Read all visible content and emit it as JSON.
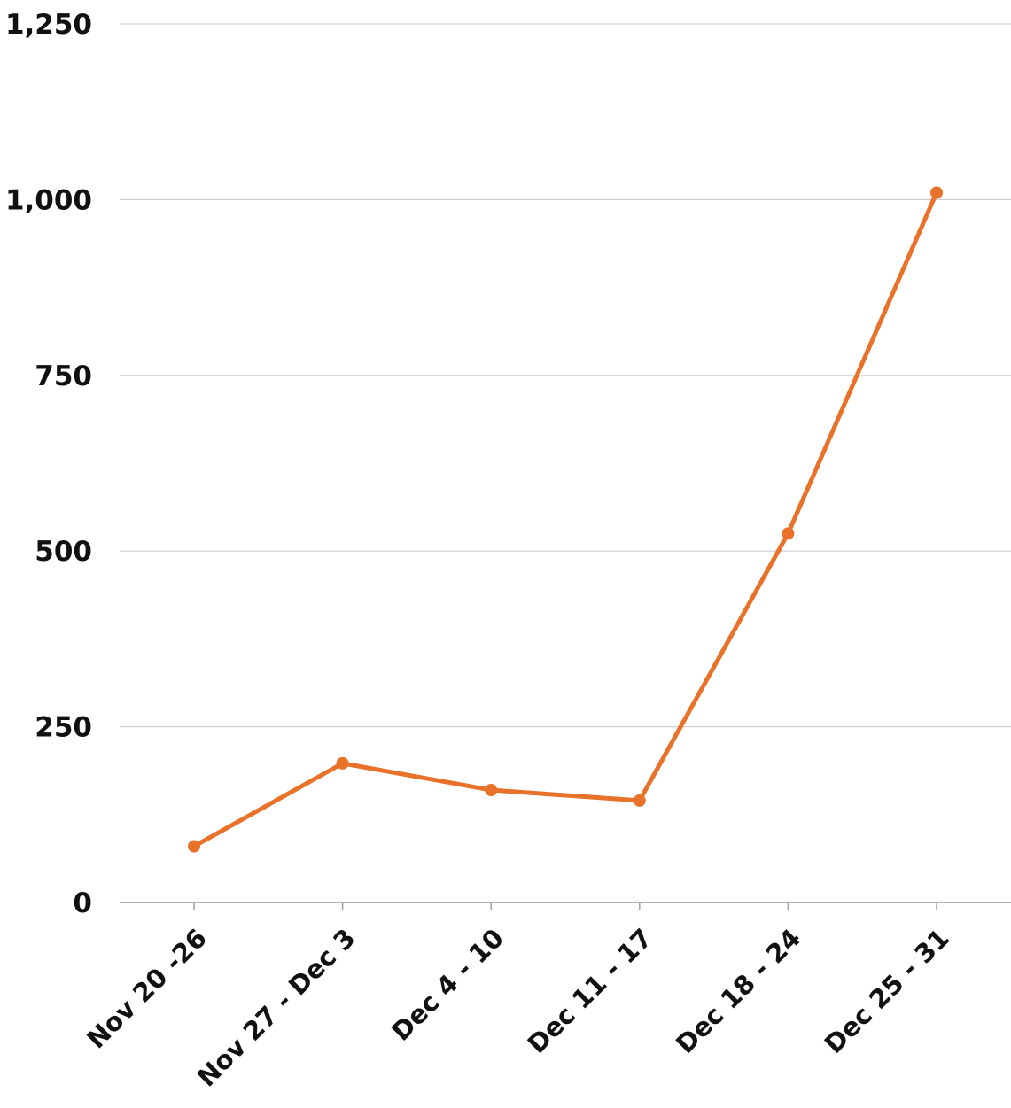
{
  "chart_data": {
    "type": "line",
    "title": "",
    "xlabel": "",
    "ylabel": "",
    "categories": [
      "Nov 20 -26",
      "Nov 27 - Dec 3",
      "Dec 4 - 10",
      "Dec 11 - 17",
      "Dec 18 - 24",
      "Dec 25 - 31"
    ],
    "series": [
      {
        "values": [
          80,
          198,
          160,
          145,
          525,
          1010
        ]
      }
    ],
    "ylim": [
      0,
      1250
    ],
    "yticks": [
      0,
      250,
      500,
      750,
      1000,
      1250
    ],
    "ytick_labels": [
      "0",
      "250",
      "500",
      "750",
      "1,000",
      "1,250"
    ],
    "grid": true,
    "legend": "none",
    "colors": {
      "line": "#e8722a",
      "grid": "#cfcfcf",
      "axis": "#9a9a9a",
      "text": "#111111"
    }
  }
}
